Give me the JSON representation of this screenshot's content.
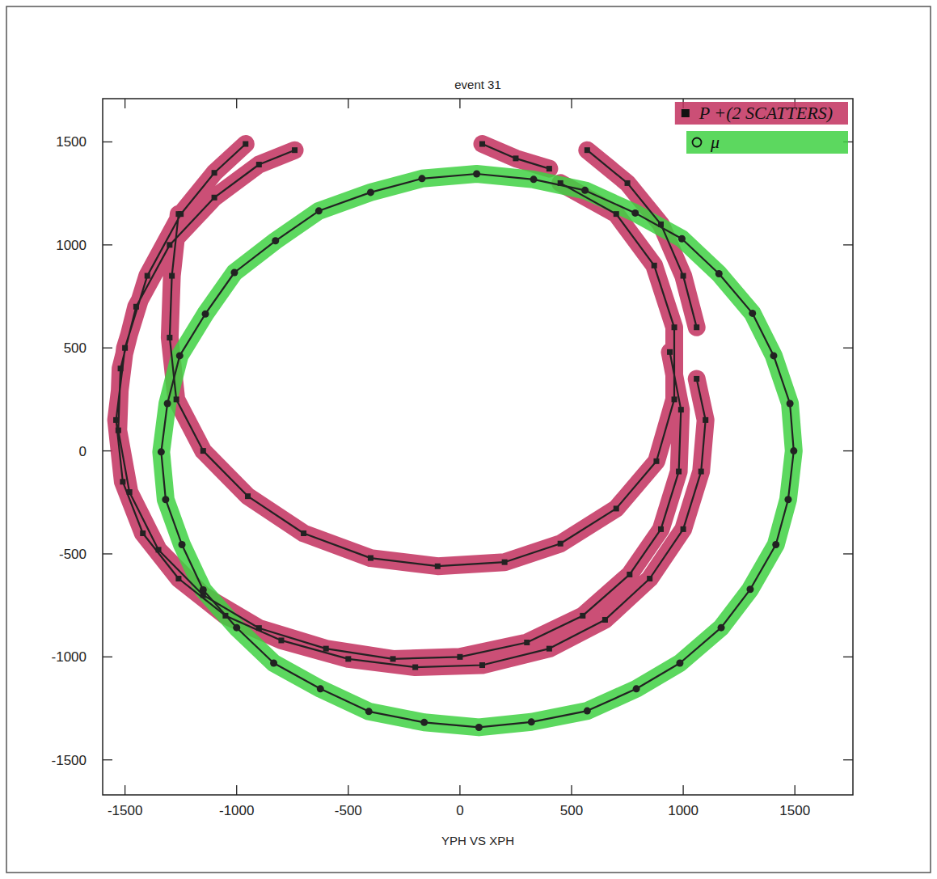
{
  "chart_data": {
    "type": "scatter",
    "title": "event 31",
    "x_label": "YPH VS XPH",
    "xlim": [
      -1600,
      1760
    ],
    "ylim": [
      -1670,
      1710
    ],
    "xticks": [
      -1500,
      -1000,
      -500,
      0,
      500,
      1000,
      1500
    ],
    "yticks": [
      -1500,
      -1000,
      -500,
      0,
      500,
      1000,
      1500
    ],
    "grid": false,
    "legend": "top-right",
    "series": [
      {
        "name": "P +(2 SCATTERS)",
        "color": "#c2305e",
        "marker": "square",
        "line_style": "highlight",
        "x": [
          -960,
          -1100,
          -1250,
          -1400,
          -1500,
          -1540,
          -1510,
          -1420,
          -1260,
          -1050,
          -800,
          -500,
          -200,
          100,
          400,
          650,
          850,
          1000,
          1080,
          1100,
          1060,
          null,
          -740,
          -900,
          -1100,
          -1300,
          -1450,
          -1520,
          -1530,
          -1480,
          -1350,
          -1150,
          -900,
          -600,
          -300,
          0,
          300,
          550,
          760,
          900,
          980,
          990,
          940,
          null,
          -1260,
          -1290,
          -1300,
          -1270,
          -1150,
          -950,
          -700,
          -400,
          -100,
          200,
          450,
          700,
          880,
          960,
          960,
          870,
          700,
          450,
          null,
          100,
          250,
          400,
          null,
          570,
          750,
          900,
          1000,
          1060
        ],
        "values": [
          1490,
          1350,
          1150,
          850,
          500,
          150,
          -150,
          -400,
          -620,
          -800,
          -920,
          -1010,
          -1050,
          -1040,
          -960,
          -820,
          -620,
          -380,
          -100,
          150,
          350,
          null,
          1460,
          1390,
          1230,
          1000,
          700,
          400,
          100,
          -200,
          -480,
          -700,
          -860,
          -960,
          -1010,
          -1000,
          -930,
          -800,
          -600,
          -380,
          -100,
          200,
          480,
          null,
          1150,
          850,
          550,
          250,
          0,
          -220,
          -400,
          -520,
          -560,
          -540,
          -450,
          -280,
          -50,
          250,
          600,
          900,
          1150,
          1300,
          null,
          1490,
          1420,
          1370,
          null,
          1460,
          1300,
          1100,
          850,
          600
        ]
      },
      {
        "name": "μ",
        "color": "#3fd143",
        "marker": "circle",
        "line_style": "highlight",
        "x": [
          1495,
          1478,
          1405,
          1310,
          1160,
          994,
          785,
          560,
          330,
          75,
          -170,
          -400,
          -632,
          -826,
          -1010,
          -1140,
          -1255,
          -1310,
          -1338,
          -1318,
          -1245,
          -1150,
          -1000,
          -834,
          -625,
          -408,
          -160,
          85,
          320,
          570,
          790,
          985,
          1170,
          1300,
          1415,
          1470
        ],
        "values": [
          0,
          230,
          462,
          668,
          860,
          1030,
          1155,
          1265,
          1318,
          1345,
          1322,
          1255,
          1165,
          1020,
          866,
          665,
          462,
          230,
          -5,
          -236,
          -455,
          -675,
          -858,
          -1030,
          -1155,
          -1265,
          -1318,
          -1342,
          -1316,
          -1262,
          -1155,
          -1030,
          -858,
          -672,
          -455,
          -236
        ]
      }
    ]
  }
}
